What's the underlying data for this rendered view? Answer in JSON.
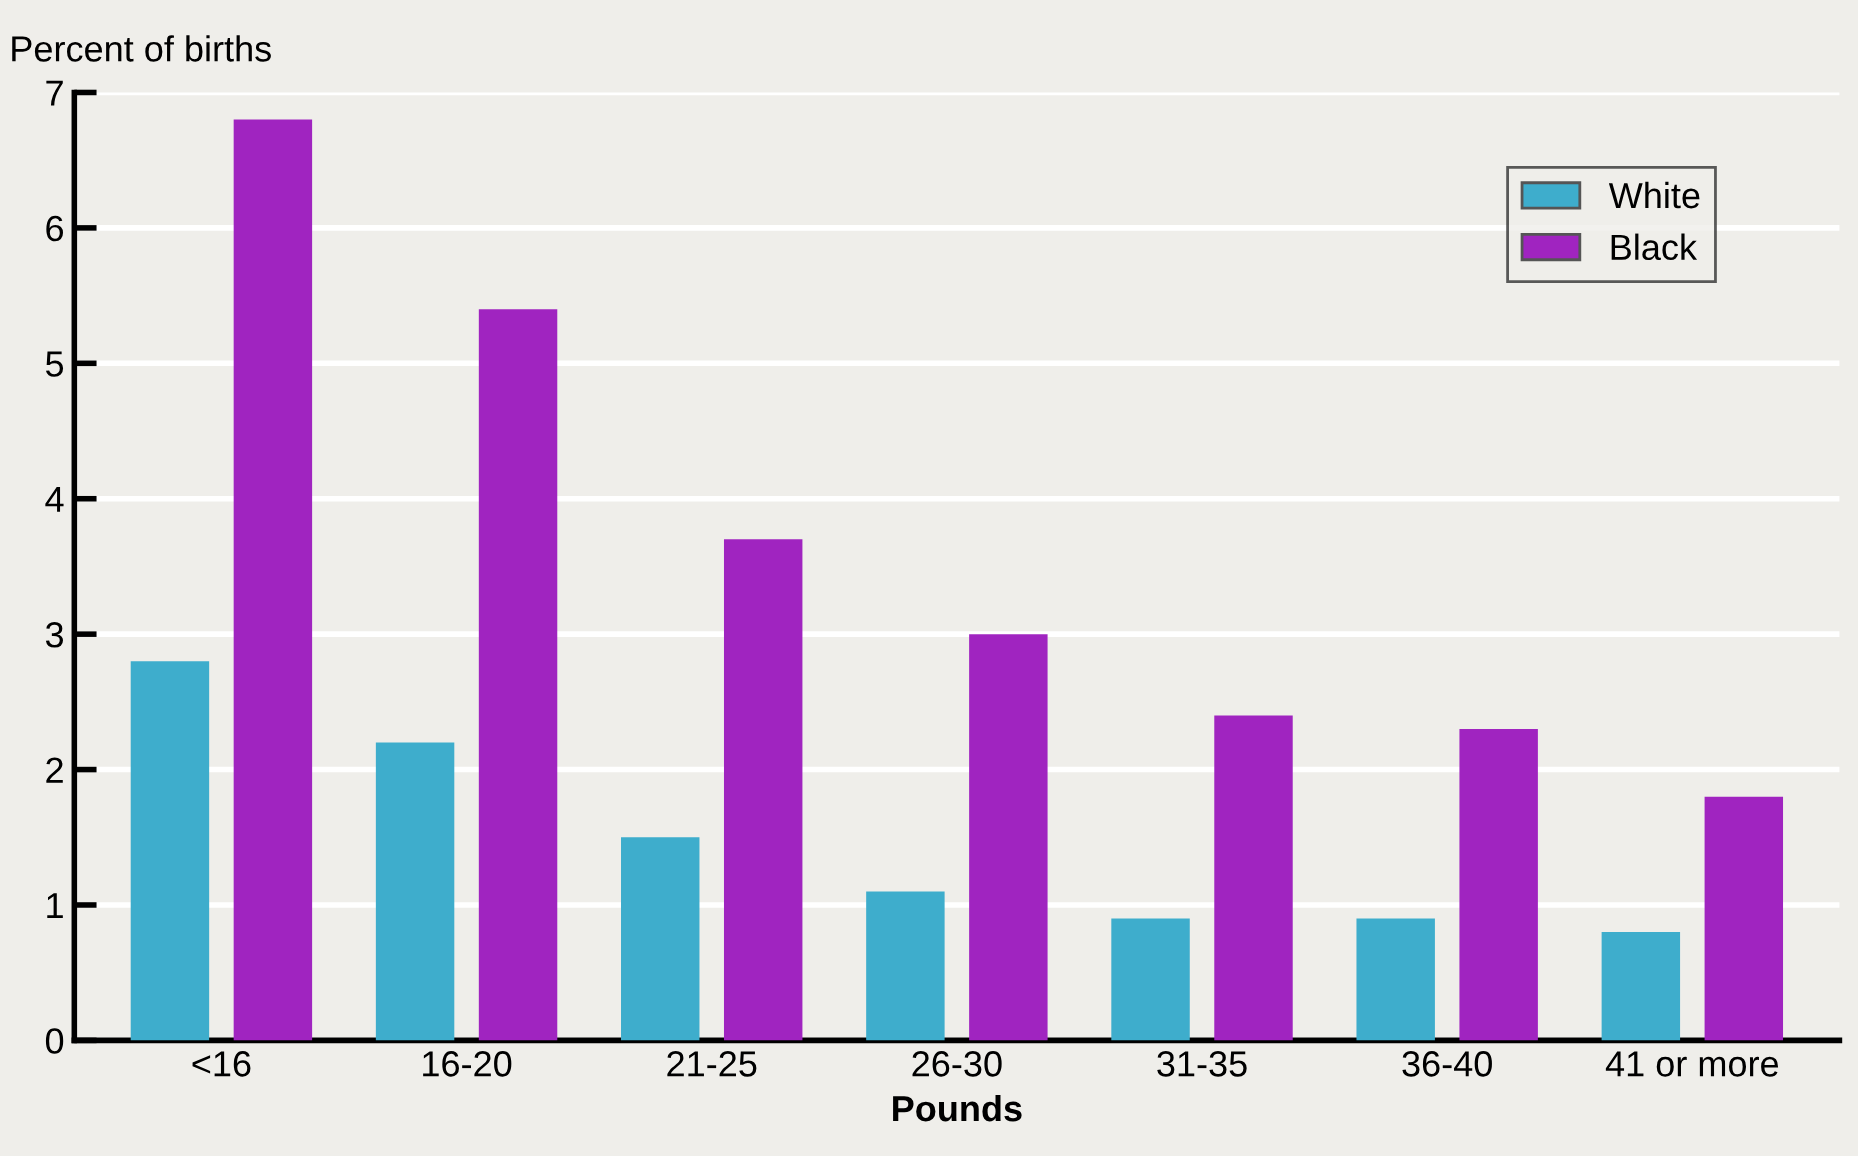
{
  "chart_data": {
    "type": "bar",
    "ylabel": "Percent of births",
    "xlabel": "Pounds",
    "categories": [
      "<16",
      "16-20",
      "21-25",
      "26-30",
      "31-35",
      "36-40",
      "41 or more"
    ],
    "series": [
      {
        "name": "White",
        "color": "#3eadcc",
        "values": [
          2.8,
          2.2,
          1.5,
          1.1,
          0.9,
          0.9,
          0.8
        ]
      },
      {
        "name": "Black",
        "color": "#a024c0",
        "values": [
          6.8,
          5.4,
          3.7,
          3.0,
          2.4,
          2.3,
          1.8
        ]
      }
    ],
    "ylim": [
      0,
      7
    ],
    "yticks": [
      0,
      1,
      2,
      3,
      4,
      5,
      6,
      7
    ],
    "grid": "y",
    "legend": "top right"
  }
}
